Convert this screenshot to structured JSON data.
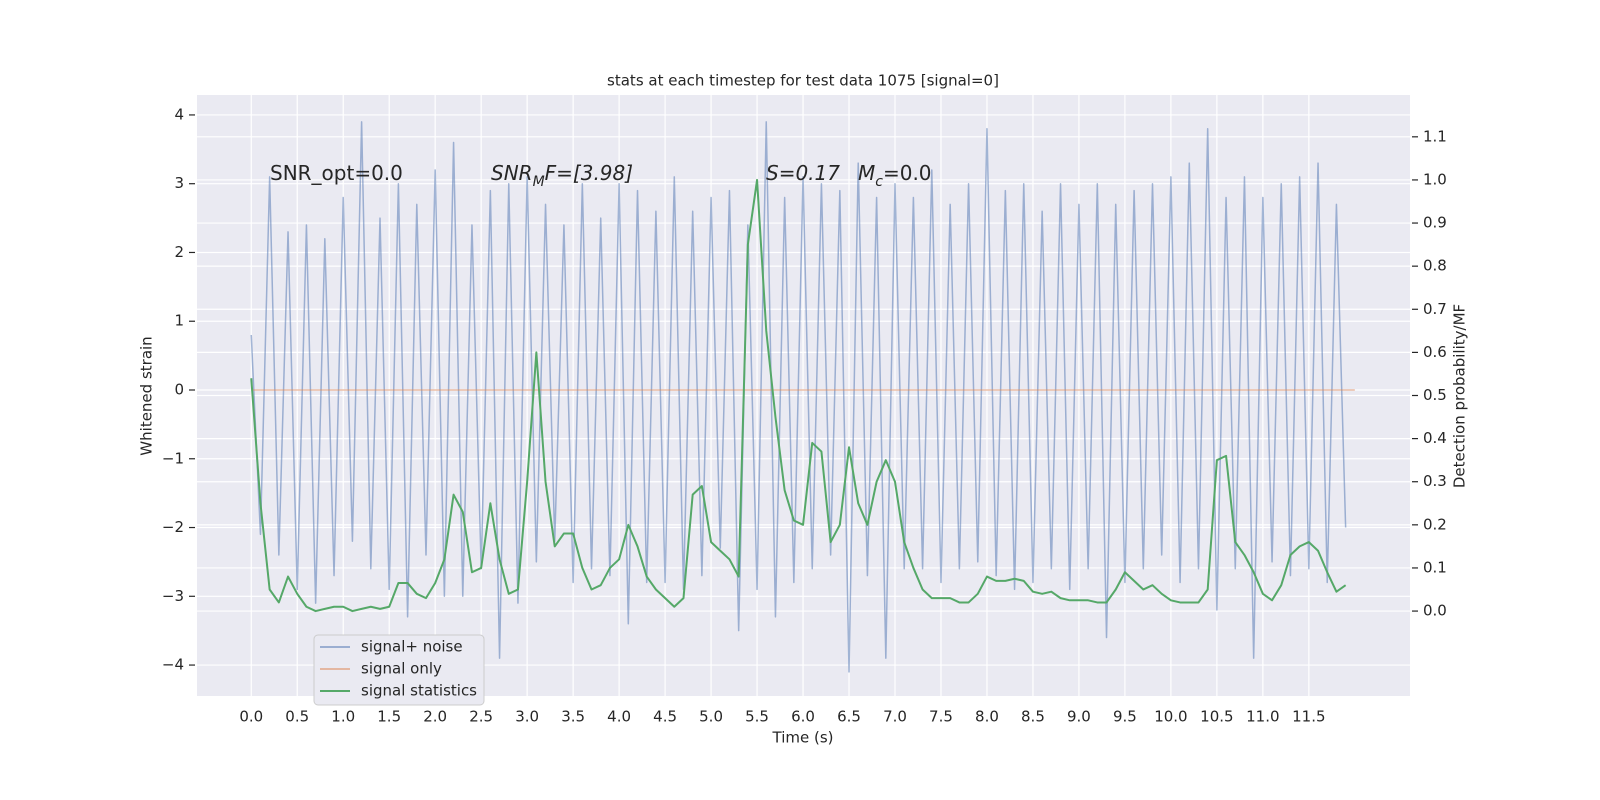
{
  "chart_data": {
    "type": "line",
    "title": "stats at each timestep for test data 1075 [signal=0]",
    "xlabel": "Time (s)",
    "ylabel": "Whitened strain",
    "y2label": "Detection probability/MF",
    "annotations": [
      [
        "SNR_opt=0.0"
      ],
      [
        "SNR",
        "M",
        "F=[3.98]"
      ],
      [
        "S=0.17"
      ],
      [
        "M",
        "c",
        "=0.0"
      ]
    ],
    "xlim": [
      -0.59,
      12.6
    ],
    "ylim": [
      -4.45,
      4.29
    ],
    "y2lim": [
      -0.197,
      1.197
    ],
    "xticks": [
      {
        "value": 0,
        "label": "0.0"
      },
      0.5,
      {
        "value": 1,
        "label": "1.0"
      },
      1.5,
      {
        "value": 2,
        "label": "2.0"
      },
      2.5,
      {
        "value": 3,
        "label": "3.0"
      },
      3.5,
      {
        "value": 4,
        "label": "4.0"
      },
      4.5,
      {
        "value": 5,
        "label": "5.0"
      },
      5.5,
      {
        "value": 6,
        "label": "6.0"
      },
      6.5,
      {
        "value": 7,
        "label": "7.0"
      },
      7.5,
      {
        "value": 8,
        "label": "8.0"
      },
      8.5,
      {
        "value": 9,
        "label": "9.0"
      },
      9.5,
      {
        "value": 10,
        "label": "10.0"
      },
      10.5,
      {
        "value": 11,
        "label": "11.0"
      },
      11.5
    ],
    "yticks": [
      {
        "value": -4,
        "label": "−4"
      },
      {
        "value": -3,
        "label": "−3"
      },
      {
        "value": -2,
        "label": "−2"
      },
      {
        "value": -1,
        "label": "−1"
      },
      0,
      1,
      2,
      3,
      4
    ],
    "y2ticks": [
      {
        "value": 0,
        "label": "0.0"
      },
      0.1,
      0.2,
      0.3,
      0.4,
      0.5,
      0.6,
      0.7,
      0.8,
      0.9,
      {
        "value": 1,
        "label": "1.0"
      },
      1.1
    ],
    "grid": true,
    "legend": "lower left",
    "x": [
      0,
      0.1,
      0.2,
      0.3,
      0.4,
      0.5,
      0.6,
      0.7,
      0.8,
      0.9,
      1,
      1.1,
      1.2,
      1.3,
      1.4,
      1.5,
      1.6,
      1.7,
      1.8,
      1.9,
      2,
      2.1,
      2.2,
      2.3,
      2.4,
      2.5,
      2.6,
      2.7,
      2.8,
      2.9,
      3,
      3.1,
      3.2,
      3.3,
      3.4,
      3.5,
      3.6,
      3.7,
      3.8,
      3.9,
      4,
      4.1,
      4.2,
      4.3,
      4.4,
      4.5,
      4.6,
      4.7,
      4.8,
      4.9,
      5,
      5.1,
      5.2,
      5.3,
      5.4,
      5.5,
      5.6,
      5.7,
      5.8,
      5.9,
      6,
      6.1,
      6.2,
      6.3,
      6.4,
      6.5,
      6.6,
      6.7,
      6.8,
      6.9,
      7,
      7.1,
      7.2,
      7.3,
      7.4,
      7.5,
      7.6,
      7.7,
      7.8,
      7.9,
      8,
      8.1,
      8.2,
      8.3,
      8.4,
      8.5,
      8.6,
      8.7,
      8.8,
      8.9,
      9,
      9.1,
      9.2,
      9.3,
      9.4,
      9.5,
      9.6,
      9.7,
      9.8,
      9.9,
      10,
      10.1,
      10.2,
      10.3,
      10.4,
      10.5,
      10.6,
      10.7,
      10.8,
      10.9,
      11,
      11.1,
      11.2,
      11.3,
      11.4,
      11.5,
      11.6,
      11.7,
      11.8,
      11.9
    ],
    "series": [
      {
        "name": "signal+ noise",
        "color": "#4c72b0",
        "opacity": 0.5,
        "values": [
          0.8,
          -2.1,
          3.1,
          -2.4,
          2.3,
          -2.9,
          2.4,
          -3.1,
          2.2,
          -2.7,
          2.8,
          -2.2,
          3.9,
          -2.6,
          2.5,
          -2.9,
          3.0,
          -3.3,
          2.7,
          -2.4,
          3.2,
          -3.0,
          3.6,
          -3.0,
          2.4,
          -2.6,
          2.9,
          -3.9,
          3.0,
          -3.1,
          3.1,
          -2.5,
          2.7,
          -2.2,
          2.4,
          -2.8,
          3.0,
          -2.6,
          2.5,
          -2.7,
          3.0,
          -3.4,
          2.9,
          -2.8,
          2.6,
          -2.8,
          3.1,
          -2.9,
          2.6,
          -2.7,
          2.8,
          -2.3,
          2.9,
          -3.5,
          2.4,
          -2.9,
          3.9,
          -3.3,
          2.8,
          -2.8,
          3.1,
          -2.6,
          3.0,
          -2.4,
          2.9,
          -4.1,
          3.3,
          -2.7,
          2.8,
          -3.9,
          3.0,
          -2.6,
          2.8,
          -2.6,
          3.2,
          -2.8,
          2.7,
          -2.6,
          3.0,
          -2.5,
          3.8,
          -2.7,
          2.9,
          -2.9,
          3.0,
          -2.8,
          2.6,
          -2.6,
          3.0,
          -2.9,
          2.7,
          -2.6,
          3.0,
          -3.6,
          2.7,
          -2.8,
          2.9,
          -2.6,
          3.0,
          -2.4,
          3.1,
          -2.8,
          3.3,
          -2.6,
          3.8,
          -3.2,
          2.8,
          -2.6,
          3.1,
          -3.9,
          2.8,
          -2.5,
          3.0,
          -2.7,
          3.1,
          -2.6,
          3.3,
          -2.8,
          2.7,
          -2.0
        ]
      },
      {
        "name": "signal only",
        "color": "#dd8452",
        "opacity": 0.5,
        "x": [
          0,
          12
        ],
        "values": [
          0,
          0
        ]
      },
      {
        "name": "signal statistics",
        "color": "#55a868",
        "opacity": 1,
        "axis": "y2",
        "values": [
          0.54,
          0.25,
          0.05,
          0.02,
          0.08,
          0.04,
          0.01,
          0.0,
          0.005,
          0.01,
          0.01,
          0.0,
          0.005,
          0.01,
          0.005,
          0.01,
          0.065,
          0.065,
          0.04,
          0.03,
          0.065,
          0.12,
          0.27,
          0.23,
          0.09,
          0.1,
          0.25,
          0.12,
          0.04,
          0.05,
          0.3,
          0.6,
          0.3,
          0.15,
          0.18,
          0.18,
          0.1,
          0.05,
          0.06,
          0.1,
          0.12,
          0.2,
          0.15,
          0.08,
          0.05,
          0.03,
          0.01,
          0.03,
          0.27,
          0.29,
          0.16,
          0.14,
          0.12,
          0.08,
          0.85,
          1.0,
          0.65,
          0.45,
          0.28,
          0.21,
          0.2,
          0.39,
          0.37,
          0.16,
          0.2,
          0.38,
          0.25,
          0.2,
          0.3,
          0.35,
          0.3,
          0.16,
          0.1,
          0.05,
          0.03,
          0.03,
          0.03,
          0.02,
          0.02,
          0.04,
          0.08,
          0.07,
          0.07,
          0.075,
          0.07,
          0.045,
          0.04,
          0.045,
          0.03,
          0.025,
          0.025,
          0.025,
          0.02,
          0.02,
          0.05,
          0.09,
          0.07,
          0.05,
          0.06,
          0.04,
          0.025,
          0.02,
          0.02,
          0.02,
          0.05,
          0.35,
          0.36,
          0.16,
          0.13,
          0.09,
          0.04,
          0.025,
          0.06,
          0.13,
          0.15,
          0.16,
          0.14,
          0.09,
          0.045,
          0.06
        ]
      }
    ]
  }
}
